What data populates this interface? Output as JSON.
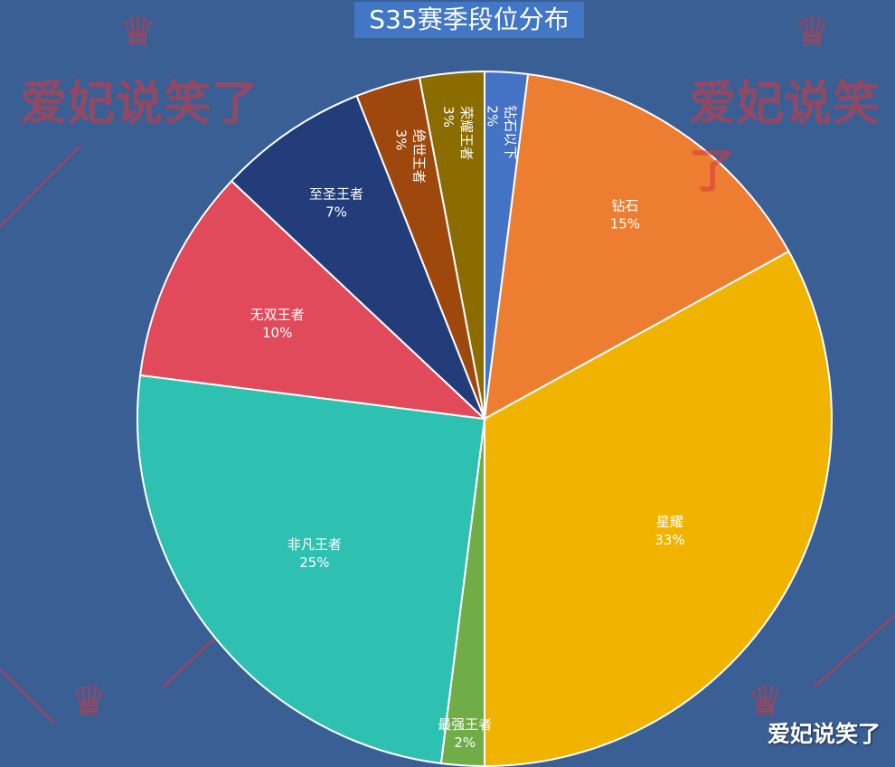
{
  "title": "S35赛季段位分布",
  "watermark": "爱妃说笑了",
  "icons": {
    "crown": "crown-icon"
  },
  "chart_data": {
    "type": "pie",
    "title": "S35赛季段位分布",
    "slices": [
      {
        "label": "钻石以下",
        "value": 2,
        "display": "2%",
        "color": "#4472c4",
        "label_color": "#ffffff",
        "vertical": true
      },
      {
        "label": "钻石",
        "value": 15,
        "display": "15%",
        "color": "#ed7d31",
        "label_color": "#ffffff"
      },
      {
        "label": "星耀",
        "value": 33,
        "display": "33%",
        "color": "#f0b400",
        "label_color": "#ffffff"
      },
      {
        "label": "最强王者",
        "value": 2,
        "display": "2%",
        "color": "#70ad47",
        "label_color": "#ffffff"
      },
      {
        "label": "非凡王者",
        "value": 25,
        "display": "25%",
        "color": "#2ec0b0",
        "label_color": "#ffffff"
      },
      {
        "label": "无双王者",
        "value": 10,
        "display": "10%",
        "color": "#e04a5a",
        "label_color": "#ffffff"
      },
      {
        "label": "至圣王者",
        "value": 7,
        "display": "7%",
        "color": "#223d7a",
        "label_color": "#ffffff"
      },
      {
        "label": "绝世王者",
        "value": 3,
        "display": "3%",
        "color": "#9e480e",
        "label_color": "#ffffff",
        "vertical": true
      },
      {
        "label": "荣耀王者",
        "value": 3,
        "display": "3%",
        "color": "#8a6c00",
        "label_color": "#ffffff",
        "vertical": true
      }
    ]
  }
}
